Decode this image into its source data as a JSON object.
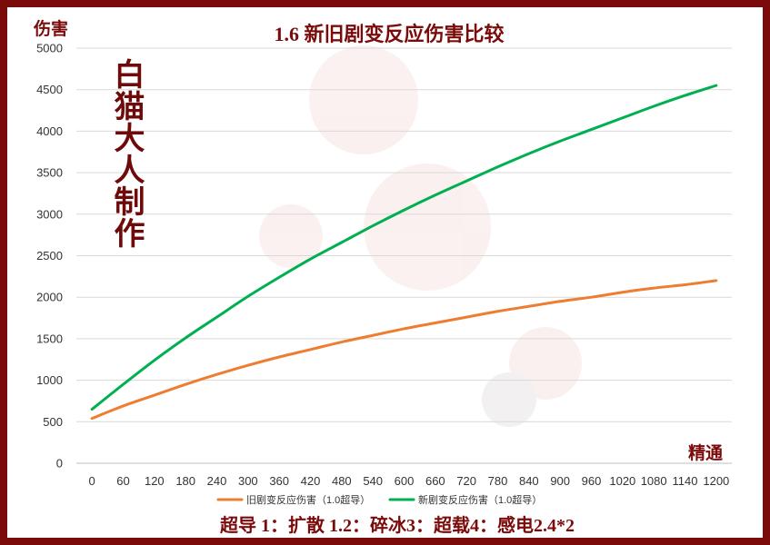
{
  "chart_data": {
    "type": "line",
    "title": "1.6 新旧剧变反应伤害比较",
    "ylabel": "伤害",
    "xlabel": "精通",
    "x": [
      0,
      60,
      120,
      180,
      240,
      300,
      360,
      420,
      480,
      540,
      600,
      660,
      720,
      780,
      840,
      900,
      960,
      1020,
      1080,
      1140,
      1200
    ],
    "ylim": [
      0,
      5000
    ],
    "yticks": [
      0,
      500,
      1000,
      1500,
      2000,
      2500,
      3000,
      3500,
      4000,
      4500,
      5000
    ],
    "grid": true,
    "legend": "bottom",
    "series": [
      {
        "name": "旧剧变反应伤害（1.0超导）",
        "color": "#ed7d31",
        "values": [
          540,
          690,
          820,
          950,
          1070,
          1180,
          1280,
          1370,
          1460,
          1540,
          1620,
          1690,
          1760,
          1830,
          1890,
          1950,
          2000,
          2060,
          2110,
          2150,
          2200
        ]
      },
      {
        "name": "新剧变反应伤害（1.0超导）",
        "color": "#00b050",
        "values": [
          650,
          950,
          1240,
          1510,
          1760,
          2010,
          2240,
          2460,
          2660,
          2860,
          3050,
          3230,
          3400,
          3570,
          3730,
          3880,
          4020,
          4160,
          4300,
          4430,
          4550
        ]
      }
    ]
  },
  "watermark": "白猫大人制作",
  "note": "超导 1：扩散 1.2：碎冰3：超载4：感电2.4*2",
  "colors": {
    "frame": "#7b0b0b",
    "title": "#7b0b0b",
    "grid": "#d9d9d9"
  }
}
